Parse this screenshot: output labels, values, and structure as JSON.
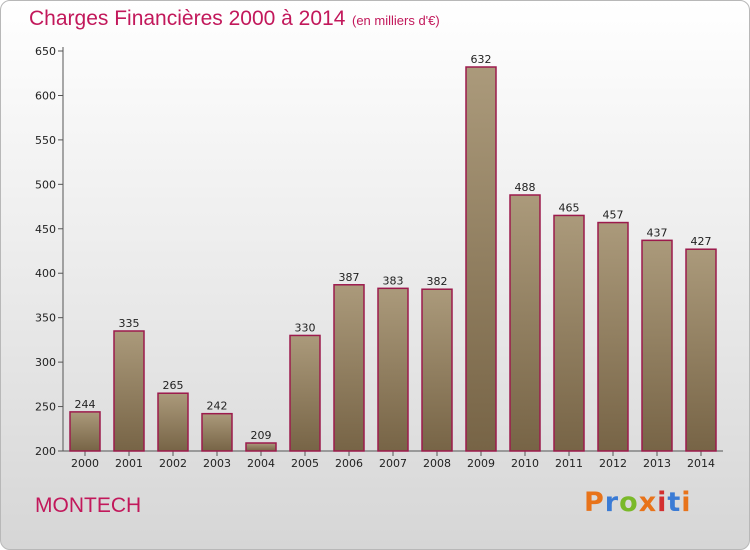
{
  "header": {
    "title": "Charges Financières 2000 à 2014",
    "subtitle": "(en milliers d'€)"
  },
  "footer": {
    "commune": "MONTECH",
    "brand_logo": "Proxiti"
  },
  "colors": {
    "accent": "#c2185b",
    "bar_top": "#ab9a7b",
    "bar_bottom": "#776446",
    "bar_border": "#9c1a4c"
  },
  "chart_data": {
    "type": "bar",
    "title": "Charges Financières 2000 à 2014",
    "subtitle": "(en milliers d'€)",
    "xlabel": "",
    "ylabel": "",
    "categories": [
      "2000",
      "2001",
      "2002",
      "2003",
      "2004",
      "2005",
      "2006",
      "2007",
      "2008",
      "2009",
      "2010",
      "2011",
      "2012",
      "2013",
      "2014"
    ],
    "values": [
      244,
      335,
      265,
      242,
      209,
      330,
      387,
      383,
      382,
      632,
      488,
      465,
      457,
      437,
      427
    ],
    "ylim": [
      200,
      650
    ],
    "yticks": [
      200,
      250,
      300,
      350,
      400,
      450,
      500,
      550,
      600,
      650
    ],
    "grid": false,
    "legend": "none",
    "data_labels": true
  }
}
